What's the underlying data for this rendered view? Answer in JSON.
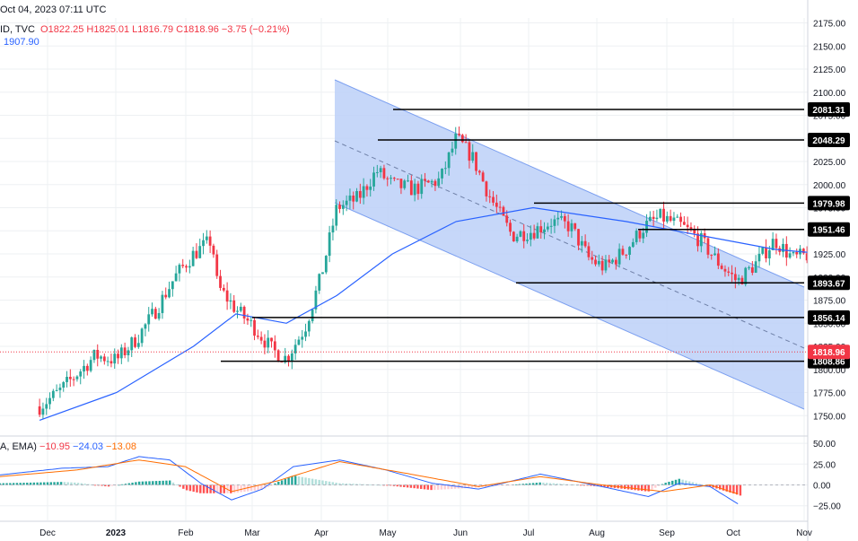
{
  "header": {
    "datetime": "Oct 04, 2023  07:11 UTC",
    "symbol_fragment": "ID, TVC",
    "ohlc": "O1822.25  H1825.01  L1816.79  C1818.96  −3.75 (−0.21%)",
    "ma_value": "1907.90",
    "osc_label": "A, EMA)",
    "osc_values": [
      "−10.95",
      "−24.03",
      "−13.08"
    ]
  },
  "colors": {
    "up": "#26a69a",
    "down": "#f23645",
    "ma": "#2962ff",
    "signal": "#ff6d00",
    "channel_fill": "#bcd0f8",
    "channel_line": "#7b9ff0"
  },
  "chart_data": [
    {
      "type": "line",
      "description": "Daily gold price candles with 50-period MA, descending channel and horizontal levels",
      "x_tick_labels": [
        "Dec",
        "2023",
        "Feb",
        "Mar",
        "Apr",
        "May",
        "Jun",
        "Jul",
        "Aug",
        "Sep",
        "Oct",
        "Nov"
      ],
      "y_tick_labels": [
        "2175.00",
        "2150.00",
        "2125.00",
        "2100.00",
        "2075.00",
        "2050.00",
        "2025.00",
        "2000.00",
        "1975.00",
        "1950.00",
        "1925.00",
        "1900.00",
        "1875.00",
        "1850.00",
        "1825.00",
        "1800.00",
        "1775.00",
        "1750.00"
      ],
      "ylim": [
        1740,
        2180
      ],
      "levels": [
        "2081.31",
        "2048.29",
        "1979.98",
        "1951.46",
        "1893.67",
        "1856.14",
        "1808.86"
      ],
      "last_price": "1818.96",
      "close_path": [
        [
          "Nov 28",
          1760
        ],
        [
          "Dec 05",
          1775
        ],
        [
          "Dec 12",
          1795
        ],
        [
          "Dec 19",
          1815
        ],
        [
          "Dec 27",
          1810
        ],
        [
          "Jan 04",
          1835
        ],
        [
          "Jan 11",
          1865
        ],
        [
          "Jan 18",
          1900
        ],
        [
          "Jan 25",
          1925
        ],
        [
          "Feb 01",
          1940
        ],
        [
          "Feb 03",
          1890
        ],
        [
          "Feb 10",
          1865
        ],
        [
          "Feb 17",
          1845
        ],
        [
          "Feb 24",
          1820
        ],
        [
          "Mar 01",
          1812
        ],
        [
          "Mar 08",
          1845
        ],
        [
          "Mar 14",
          1900
        ],
        [
          "Mar 20",
          1975
        ],
        [
          "Mar 28",
          1985
        ],
        [
          "Apr 04",
          2015
        ],
        [
          "Apr 10",
          2000
        ],
        [
          "Apr 18",
          1995
        ],
        [
          "Apr 28",
          2005
        ],
        [
          "May 04",
          2050
        ],
        [
          "May 10",
          2030
        ],
        [
          "May 17",
          1985
        ],
        [
          "May 25",
          1945
        ],
        [
          "Jun 02",
          1950
        ],
        [
          "Jun 09",
          1960
        ],
        [
          "Jun 16",
          1955
        ],
        [
          "Jun 23",
          1920
        ],
        [
          "Jun 29",
          1910
        ],
        [
          "Jul 07",
          1930
        ],
        [
          "Jul 14",
          1955
        ],
        [
          "Jul 20",
          1965
        ],
        [
          "Jul 28",
          1955
        ],
        [
          "Aug 04",
          1940
        ],
        [
          "Aug 11",
          1915
        ],
        [
          "Aug 18",
          1895
        ],
        [
          "Aug 25",
          1915
        ],
        [
          "Sep 01",
          1940
        ],
        [
          "Sep 08",
          1920
        ],
        [
          "Sep 15",
          1925
        ],
        [
          "Sep 20",
          1935
        ],
        [
          "Sep 25",
          1915
        ],
        [
          "Sep 28",
          1870
        ],
        [
          "Oct 02",
          1830
        ],
        [
          "Oct 04",
          1819
        ]
      ],
      "ma_path": [
        [
          "Nov 28",
          1745
        ],
        [
          "Dec 27",
          1775
        ],
        [
          "Jan 25",
          1825
        ],
        [
          "Feb 10",
          1860
        ],
        [
          "Mar 01",
          1850
        ],
        [
          "Mar 20",
          1880
        ],
        [
          "Apr 10",
          1925
        ],
        [
          "May 04",
          1960
        ],
        [
          "Jun 02",
          1975
        ],
        [
          "Jul 07",
          1960
        ],
        [
          "Aug 04",
          1945
        ],
        [
          "Sep 01",
          1930
        ],
        [
          "Sep 20",
          1925
        ],
        [
          "Oct 02",
          1910
        ]
      ]
    },
    {
      "type": "bar",
      "description": "MACD histogram with MACD and signal lines",
      "y_tick_labels": [
        "50.00",
        "25.00",
        "0.00",
        "−25.00"
      ],
      "ylim": [
        -36,
        55
      ],
      "series": [
        {
          "name": "macd",
          "values": [
            [
              0,
              12
            ],
            [
              0.08,
              20
            ],
            [
              0.14,
              22
            ],
            [
              0.18,
              34
            ],
            [
              0.22,
              30
            ],
            [
              0.26,
              2
            ],
            [
              0.3,
              -18
            ],
            [
              0.34,
              -5
            ],
            [
              0.38,
              22
            ],
            [
              0.44,
              30
            ],
            [
              0.5,
              18
            ],
            [
              0.56,
              2
            ],
            [
              0.62,
              -5
            ],
            [
              0.7,
              13
            ],
            [
              0.78,
              -2
            ],
            [
              0.84,
              -14
            ],
            [
              0.88,
              2
            ],
            [
              0.92,
              -2
            ],
            [
              0.96,
              -25
            ]
          ]
        },
        {
          "name": "signal",
          "values": [
            [
              0,
              10
            ],
            [
              0.1,
              18
            ],
            [
              0.18,
              30
            ],
            [
              0.24,
              22
            ],
            [
              0.3,
              -8
            ],
            [
              0.36,
              5
            ],
            [
              0.44,
              28
            ],
            [
              0.52,
              15
            ],
            [
              0.62,
              -2
            ],
            [
              0.7,
              10
            ],
            [
              0.78,
              0
            ],
            [
              0.86,
              -8
            ],
            [
              0.92,
              0
            ],
            [
              0.96,
              -12
            ]
          ]
        }
      ]
    }
  ]
}
